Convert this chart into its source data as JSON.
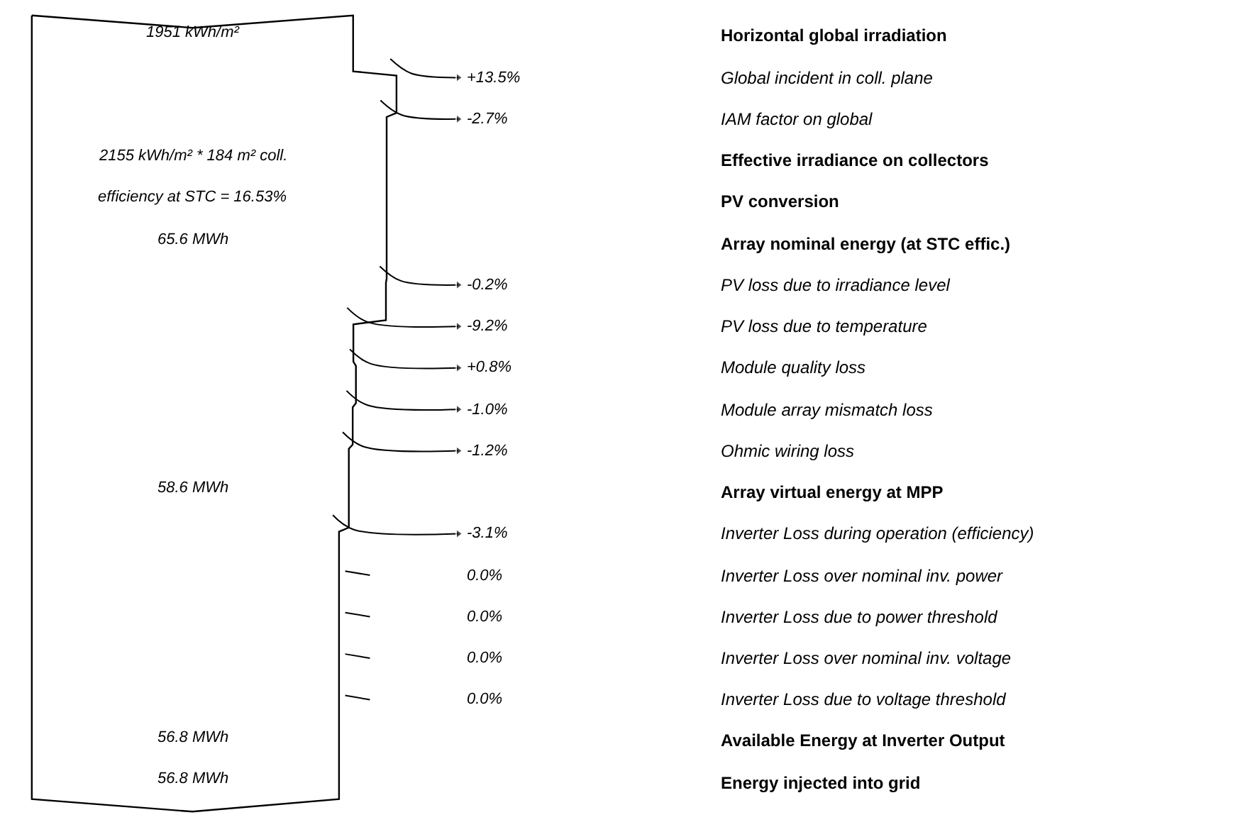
{
  "chart_data": {
    "type": "other",
    "categories": [
      "Horizontal global irradiation",
      "Global incident in coll. plane",
      "IAM factor on global",
      "Effective irradiance on collectors",
      "PV conversion",
      "Array nominal energy (at STC effic.)",
      "PV loss due to irradiance level",
      "PV loss due to temperature",
      "Module quality loss",
      "Module array mismatch loss",
      "Ohmic wiring loss",
      "Array virtual energy at MPP",
      "Inverter Loss during operation (efficiency)",
      "Inverter Loss over nominal inv. power",
      "Inverter Loss due to power threshold",
      "Inverter Loss over nominal inv. voltage",
      "Inverter Loss due to voltage threshold",
      "Available Energy at Inverter Output",
      "Energy injected into grid"
    ],
    "values": [
      null,
      13.5,
      -2.7,
      null,
      null,
      null,
      -0.2,
      -9.2,
      0.8,
      -1.0,
      -1.2,
      null,
      -3.1,
      0.0,
      0.0,
      0.0,
      0.0,
      null,
      null
    ],
    "value_labels": [
      "1951 kWh/m²",
      "+13.5%",
      "-2.7%",
      "2155 kWh/m² * 184 m² coll.",
      "efficiency at STC = 16.53%",
      "65.6 MWh",
      "-0.2%",
      "-9.2%",
      "+0.8%",
      "-1.0%",
      "-1.2%",
      "58.6 MWh",
      "-3.1%",
      "0.0%",
      "0.0%",
      "0.0%",
      "0.0%",
      "56.8 MWh",
      "56.8 MWh"
    ],
    "color": "#000000"
  }
}
